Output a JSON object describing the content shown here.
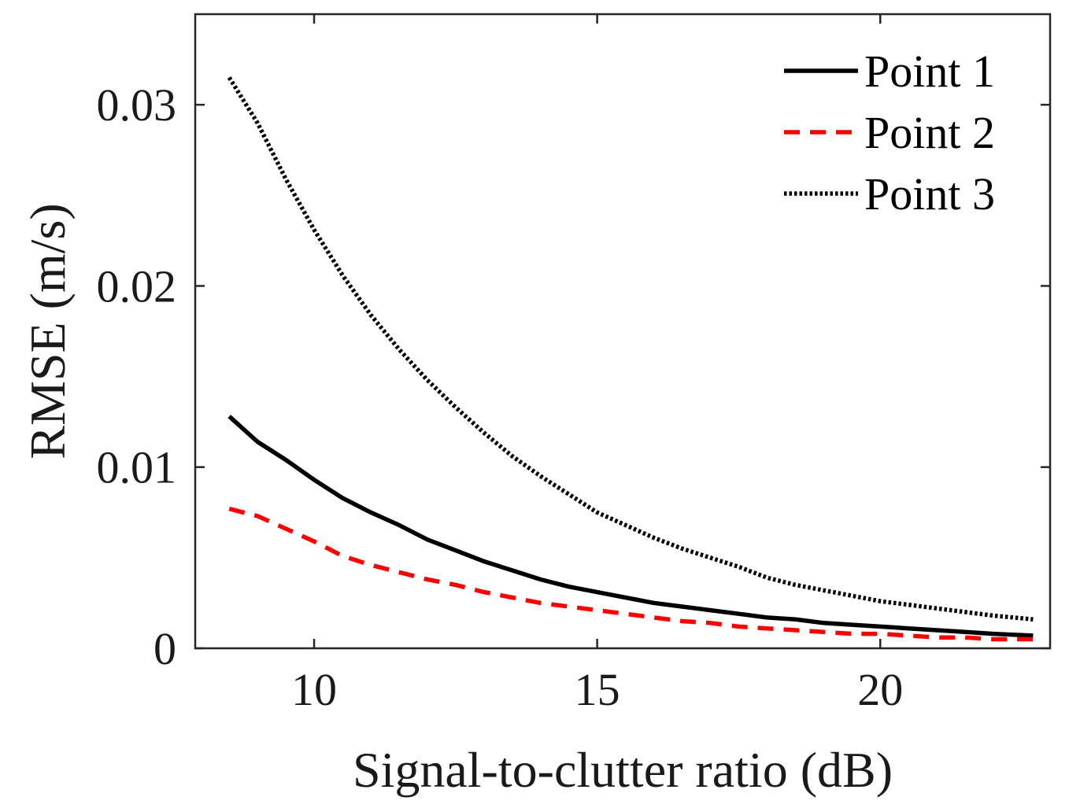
{
  "chart_data": {
    "type": "line",
    "xlabel": "Signal-to-clutter ratio (dB)",
    "ylabel": "RMSE (m/s)",
    "xlim": [
      7.9,
      23.0
    ],
    "ylim": [
      0,
      0.035
    ],
    "xticks": [
      10,
      15,
      20
    ],
    "xtick_labels": [
      "10",
      "15",
      "20"
    ],
    "yticks": [
      0,
      0.01,
      0.02,
      0.03
    ],
    "ytick_labels": [
      "0",
      "0.01",
      "0.02",
      "0.03"
    ],
    "grid": false,
    "legend_position": "top-right",
    "x": [
      8.5,
      9,
      9.5,
      10,
      10.5,
      11,
      11.5,
      12,
      12.5,
      13,
      13.5,
      14,
      14.5,
      15,
      15.5,
      16,
      16.5,
      17,
      17.5,
      18,
      18.5,
      19,
      19.5,
      20,
      20.5,
      21,
      21.5,
      22,
      22.7
    ],
    "series": [
      {
        "name": "Point 1",
        "color": "#000000",
        "style": "solid",
        "values": [
          0.0128,
          0.0114,
          0.0104,
          0.0093,
          0.0083,
          0.0075,
          0.0068,
          0.006,
          0.0054,
          0.0048,
          0.0043,
          0.0038,
          0.0034,
          0.0031,
          0.0028,
          0.0025,
          0.0023,
          0.0021,
          0.0019,
          0.0017,
          0.0016,
          0.0014,
          0.0013,
          0.0012,
          0.0011,
          0.001,
          0.0009,
          0.0008,
          0.0007
        ]
      },
      {
        "name": "Point 2",
        "color": "#ff0000",
        "style": "dashed",
        "values": [
          0.0077,
          0.0073,
          0.0066,
          0.0059,
          0.0051,
          0.0046,
          0.0042,
          0.0038,
          0.0035,
          0.0031,
          0.0028,
          0.0025,
          0.0023,
          0.0021,
          0.0019,
          0.0017,
          0.0015,
          0.0014,
          0.0012,
          0.0011,
          0.001,
          0.0009,
          0.0008,
          0.0008,
          0.0007,
          0.0006,
          0.0006,
          0.0005,
          0.0005
        ]
      },
      {
        "name": "Point 3",
        "color": "#000000",
        "style": "dotted",
        "values": [
          0.0315,
          0.029,
          0.0259,
          0.0231,
          0.0206,
          0.0184,
          0.0165,
          0.0148,
          0.0133,
          0.0119,
          0.0106,
          0.0095,
          0.0085,
          0.0075,
          0.0068,
          0.0061,
          0.0055,
          0.005,
          0.0045,
          0.0039,
          0.0035,
          0.0032,
          0.0029,
          0.0026,
          0.0024,
          0.0022,
          0.002,
          0.0018,
          0.0016
        ]
      }
    ]
  }
}
